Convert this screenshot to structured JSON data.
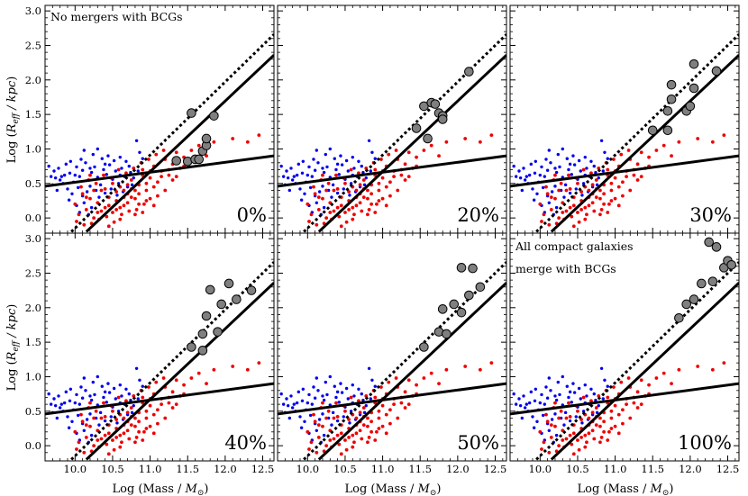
{
  "chart_data": {
    "type": "scatter",
    "title": "",
    "xlabel": "Log (Mass / M_⊙)",
    "ylabel": "Log (R_eff / kpc)",
    "xlim": [
      9.6,
      12.65
    ],
    "ylim": [
      -0.22,
      3.08
    ],
    "xticks": [
      "10.0",
      "10.5",
      "11.0",
      "11.5",
      "12.0",
      "12.5"
    ],
    "yticks": [
      "0.0",
      "0.5",
      "1.0",
      "1.5",
      "2.0",
      "2.5",
      "3.0"
    ],
    "colors": {
      "blue": "#0000ee",
      "red": "#ee0000",
      "gray": "#7f7f7f",
      "line": "#000000"
    },
    "lines": [
      {
        "name": "shallow relation",
        "style": "solid",
        "points": [
          [
            9.6,
            0.46
          ],
          [
            12.65,
            0.9
          ]
        ]
      },
      {
        "name": "steep relation",
        "style": "solid",
        "points": [
          [
            10.15,
            -0.2
          ],
          [
            12.65,
            2.36
          ]
        ]
      },
      {
        "name": "steep relation offset",
        "style": "dotted",
        "points": [
          [
            9.95,
            -0.2
          ],
          [
            12.65,
            2.66
          ]
        ]
      }
    ],
    "panels": [
      {
        "label": "0%",
        "annotation": [],
        "gray_points": [
          [
            11.5,
            0.82
          ],
          [
            11.55,
            1.52
          ],
          [
            11.6,
            0.85
          ],
          [
            11.65,
            0.85
          ],
          [
            11.7,
            0.97
          ],
          [
            11.75,
            1.05
          ],
          [
            11.75,
            1.15
          ],
          [
            11.35,
            0.83
          ],
          [
            11.85,
            1.48
          ]
        ]
      },
      {
        "label": "20%",
        "annotation": [],
        "gray_points": [
          [
            11.45,
            1.3
          ],
          [
            11.55,
            1.62
          ],
          [
            11.6,
            1.15
          ],
          [
            11.65,
            1.67
          ],
          [
            11.7,
            1.65
          ],
          [
            11.75,
            1.52
          ],
          [
            11.8,
            1.48
          ],
          [
            11.8,
            1.43
          ],
          [
            12.15,
            2.12
          ]
        ]
      },
      {
        "label": "30%",
        "annotation": [],
        "gray_points": [
          [
            11.5,
            1.27
          ],
          [
            11.7,
            1.55
          ],
          [
            11.7,
            1.27
          ],
          [
            11.75,
            1.72
          ],
          [
            11.75,
            1.93
          ],
          [
            11.95,
            1.55
          ],
          [
            12.0,
            1.62
          ],
          [
            12.05,
            1.88
          ],
          [
            12.05,
            2.23
          ],
          [
            12.35,
            2.13
          ]
        ]
      },
      {
        "label": "40%",
        "annotation": [],
        "gray_points": [
          [
            11.55,
            1.43
          ],
          [
            11.7,
            1.62
          ],
          [
            11.75,
            1.88
          ],
          [
            11.7,
            1.38
          ],
          [
            11.8,
            2.26
          ],
          [
            11.9,
            1.65
          ],
          [
            11.95,
            2.05
          ],
          [
            12.05,
            2.35
          ],
          [
            12.15,
            2.12
          ],
          [
            12.35,
            2.25
          ]
        ]
      },
      {
        "label": "50%",
        "annotation": [],
        "gray_points": [
          [
            11.55,
            1.43
          ],
          [
            11.75,
            1.65
          ],
          [
            11.8,
            1.98
          ],
          [
            11.85,
            1.62
          ],
          [
            11.95,
            2.05
          ],
          [
            12.05,
            2.58
          ],
          [
            12.05,
            1.93
          ],
          [
            12.2,
            2.57
          ],
          [
            12.15,
            2.18
          ],
          [
            12.3,
            2.3
          ]
        ]
      },
      {
        "label": "100%",
        "annotation": [
          "All compact galaxies",
          "merge with BCGs"
        ],
        "gray_points": [
          [
            11.85,
            1.85
          ],
          [
            11.95,
            2.05
          ],
          [
            12.05,
            2.12
          ],
          [
            12.15,
            2.35
          ],
          [
            12.25,
            2.95
          ],
          [
            12.3,
            2.38
          ],
          [
            12.35,
            2.88
          ],
          [
            12.45,
            2.58
          ],
          [
            12.5,
            2.68
          ],
          [
            12.55,
            2.62
          ]
        ]
      }
    ],
    "blue_points": [
      [
        9.65,
        0.75
      ],
      [
        9.72,
        0.68
      ],
      [
        9.78,
        0.72
      ],
      [
        9.82,
        0.6
      ],
      [
        9.88,
        0.78
      ],
      [
        9.93,
        0.65
      ],
      [
        9.98,
        0.52
      ],
      [
        10.02,
        0.74
      ],
      [
        10.06,
        0.6
      ],
      [
        10.1,
        0.69
      ],
      [
        10.14,
        0.8
      ],
      [
        10.18,
        0.55
      ],
      [
        10.22,
        0.66
      ],
      [
        10.26,
        0.74
      ],
      [
        10.3,
        0.59
      ],
      [
        10.34,
        0.48
      ],
      [
        10.38,
        0.7
      ],
      [
        10.42,
        0.63
      ],
      [
        10.46,
        0.77
      ],
      [
        10.5,
        0.56
      ],
      [
        10.54,
        0.68
      ],
      [
        10.58,
        0.5
      ],
      [
        10.62,
        0.72
      ],
      [
        10.66,
        0.6
      ],
      [
        10.7,
        0.45
      ],
      [
        10.74,
        0.66
      ],
      [
        9.7,
        0.48
      ],
      [
        9.76,
        0.4
      ],
      [
        9.84,
        0.5
      ],
      [
        9.9,
        0.42
      ],
      [
        9.96,
        0.35
      ],
      [
        10.04,
        0.44
      ],
      [
        10.1,
        0.32
      ],
      [
        10.16,
        0.38
      ],
      [
        10.2,
        0.46
      ],
      [
        10.28,
        0.4
      ],
      [
        10.32,
        0.3
      ],
      [
        10.4,
        0.36
      ],
      [
        10.48,
        0.42
      ],
      [
        10.56,
        0.33
      ],
      [
        10.64,
        0.38
      ],
      [
        9.74,
        0.58
      ],
      [
        9.86,
        0.62
      ],
      [
        9.94,
        0.82
      ],
      [
        10.08,
        0.85
      ],
      [
        10.24,
        0.92
      ],
      [
        10.36,
        0.86
      ],
      [
        10.44,
        0.9
      ],
      [
        10.52,
        0.83
      ],
      [
        10.6,
        0.88
      ],
      [
        10.68,
        0.82
      ],
      [
        10.72,
        0.75
      ],
      [
        10.12,
        0.98
      ],
      [
        10.3,
        1.0
      ],
      [
        10.82,
        1.12
      ],
      [
        10.86,
        0.95
      ],
      [
        10.9,
        0.86
      ],
      [
        10.78,
        0.58
      ],
      [
        10.84,
        0.68
      ],
      [
        10.76,
        0.48
      ],
      [
        9.68,
        0.6
      ],
      [
        9.8,
        0.55
      ],
      [
        10.0,
        0.62
      ],
      [
        10.2,
        0.72
      ],
      [
        10.4,
        0.78
      ],
      [
        10.6,
        0.62
      ],
      [
        9.92,
        0.26
      ],
      [
        10.02,
        0.18
      ],
      [
        10.12,
        0.22
      ],
      [
        10.22,
        0.15
      ],
      [
        10.06,
        0.08
      ],
      [
        10.18,
        0.05
      ]
    ],
    "red_points": [
      [
        10.0,
        0.2
      ],
      [
        10.05,
        0.05
      ],
      [
        10.1,
        0.35
      ],
      [
        10.15,
        0.12
      ],
      [
        10.2,
        0.28
      ],
      [
        10.25,
        0.0
      ],
      [
        10.3,
        0.22
      ],
      [
        10.35,
        0.4
      ],
      [
        10.4,
        0.15
      ],
      [
        10.45,
        0.3
      ],
      [
        10.5,
        0.08
      ],
      [
        10.55,
        0.25
      ],
      [
        10.6,
        0.45
      ],
      [
        10.65,
        0.18
      ],
      [
        10.7,
        0.35
      ],
      [
        10.75,
        0.55
      ],
      [
        10.8,
        0.28
      ],
      [
        10.85,
        0.48
      ],
      [
        10.9,
        0.62
      ],
      [
        10.95,
        0.4
      ],
      [
        11.0,
        0.58
      ],
      [
        11.05,
        0.75
      ],
      [
        11.1,
        0.52
      ],
      [
        11.15,
        0.68
      ],
      [
        11.2,
        0.85
      ],
      [
        11.25,
        0.62
      ],
      [
        11.3,
        0.78
      ],
      [
        11.35,
        0.95
      ],
      [
        11.4,
        0.72
      ],
      [
        11.45,
        0.88
      ],
      [
        10.02,
        -0.05
      ],
      [
        10.12,
        -0.1
      ],
      [
        10.22,
        -0.08
      ],
      [
        10.32,
        -0.02
      ],
      [
        10.42,
        0.02
      ],
      [
        10.52,
        -0.06
      ],
      [
        10.62,
        0.05
      ],
      [
        10.72,
        0.1
      ],
      [
        10.82,
        0.12
      ],
      [
        10.92,
        0.2
      ],
      [
        10.08,
        0.45
      ],
      [
        10.18,
        0.55
      ],
      [
        10.28,
        0.5
      ],
      [
        10.38,
        0.62
      ],
      [
        10.48,
        0.58
      ],
      [
        10.58,
        0.7
      ],
      [
        10.68,
        0.65
      ],
      [
        10.78,
        0.72
      ],
      [
        10.88,
        0.8
      ],
      [
        10.98,
        0.85
      ],
      [
        11.08,
        0.92
      ],
      [
        11.18,
        0.98
      ],
      [
        10.55,
        0.38
      ],
      [
        10.65,
        0.3
      ],
      [
        10.75,
        0.42
      ],
      [
        10.85,
        0.35
      ],
      [
        10.95,
        0.5
      ],
      [
        11.05,
        0.45
      ],
      [
        11.15,
        0.6
      ],
      [
        11.25,
        0.7
      ],
      [
        10.4,
        0.42
      ],
      [
        10.5,
        0.5
      ],
      [
        10.6,
        0.15
      ],
      [
        10.7,
        0.22
      ],
      [
        10.8,
        0.05
      ],
      [
        10.9,
        0.08
      ],
      [
        11.0,
        0.28
      ],
      [
        11.1,
        0.32
      ],
      [
        11.2,
        0.4
      ],
      [
        11.3,
        0.55
      ],
      [
        11.55,
        0.98
      ],
      [
        11.65,
        1.05
      ],
      [
        11.75,
        0.9
      ],
      [
        11.85,
        1.1
      ],
      [
        12.1,
        1.15
      ],
      [
        12.3,
        1.1
      ],
      [
        12.45,
        1.2
      ],
      [
        10.35,
        0.1
      ],
      [
        10.45,
        0.18
      ],
      [
        10.55,
        0.12
      ],
      [
        10.65,
        0.4
      ],
      [
        10.75,
        0.3
      ],
      [
        10.85,
        0.2
      ],
      [
        10.95,
        0.25
      ],
      [
        11.05,
        0.18
      ],
      [
        10.9,
        0.7
      ],
      [
        11.0,
        0.68
      ],
      [
        10.15,
        0.3
      ],
      [
        10.25,
        0.4
      ],
      [
        10.3,
        0.08
      ],
      [
        10.45,
        -0.12
      ],
      [
        10.6,
        -0.02
      ],
      [
        10.8,
        0.4
      ],
      [
        10.7,
        0.48
      ],
      [
        11.35,
        0.6
      ],
      [
        11.45,
        0.75
      ],
      [
        10.2,
        0.62
      ]
    ]
  }
}
